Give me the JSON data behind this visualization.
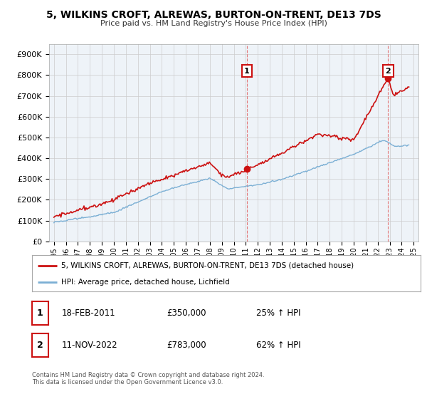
{
  "title": "5, WILKINS CROFT, ALREWAS, BURTON-ON-TRENT, DE13 7DS",
  "subtitle": "Price paid vs. HM Land Registry's House Price Index (HPI)",
  "ylim": [
    0,
    950000
  ],
  "yticks": [
    0,
    100000,
    200000,
    300000,
    400000,
    500000,
    600000,
    700000,
    800000,
    900000
  ],
  "ytick_labels": [
    "£0",
    "£100K",
    "£200K",
    "£300K",
    "£400K",
    "£500K",
    "£600K",
    "£700K",
    "£800K",
    "£900K"
  ],
  "xtick_labels": [
    "1995",
    "1996",
    "1997",
    "1998",
    "1999",
    "2000",
    "2001",
    "2002",
    "2003",
    "2004",
    "2005",
    "2006",
    "2007",
    "2008",
    "2009",
    "2010",
    "2011",
    "2012",
    "2013",
    "2014",
    "2015",
    "2016",
    "2017",
    "2018",
    "2019",
    "2020",
    "2021",
    "2022",
    "2023",
    "2024",
    "2025"
  ],
  "hpi_color": "#7bafd4",
  "price_color": "#cc1111",
  "dashed_color": "#dd4444",
  "marker1_date": 2011.1,
  "marker2_date": 2022.87,
  "marker1_price": 350000,
  "marker2_price": 783000,
  "legend_label1": "5, WILKINS CROFT, ALREWAS, BURTON-ON-TRENT, DE13 7DS (detached house)",
  "legend_label2": "HPI: Average price, detached house, Lichfield",
  "table_row1": [
    "1",
    "18-FEB-2011",
    "£350,000",
    "25% ↑ HPI"
  ],
  "table_row2": [
    "2",
    "11-NOV-2022",
    "£783,000",
    "62% ↑ HPI"
  ],
  "footer": "Contains HM Land Registry data © Crown copyright and database right 2024.\nThis data is licensed under the Open Government Licence v3.0.",
  "background_color": "#ffffff",
  "grid_color": "#cccccc",
  "plot_bg_color": "#eef3f8"
}
